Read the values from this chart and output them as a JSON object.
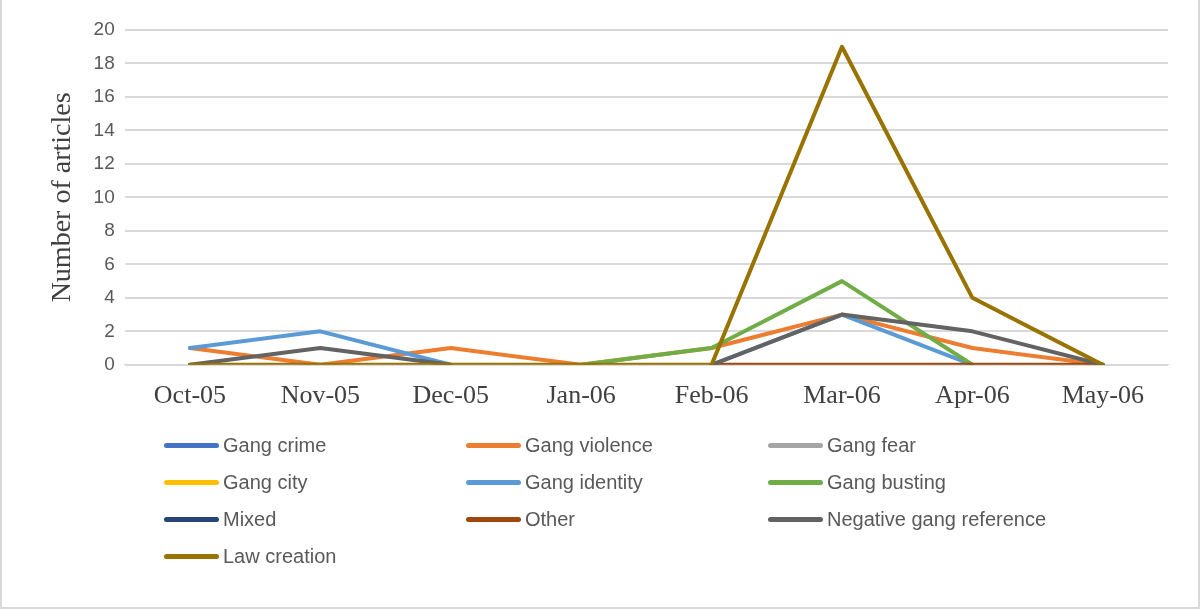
{
  "chart_data": {
    "type": "line",
    "ylabel": "Number of articles",
    "categories": [
      "Oct-05",
      "Nov-05",
      "Dec-05",
      "Jan-06",
      "Feb-06",
      "Mar-06",
      "Apr-06",
      "May-06"
    ],
    "ylim": [
      0,
      20
    ],
    "yticks": [
      0,
      2,
      4,
      6,
      8,
      10,
      12,
      14,
      16,
      18,
      20
    ],
    "grid": "y",
    "legend": "bottom",
    "marker": "none",
    "series": [
      {
        "name": "Gang crime",
        "color": "#4472c4",
        "values": [
          null,
          null,
          null,
          null,
          null,
          null,
          null,
          null
        ]
      },
      {
        "name": "Gang violence",
        "color": "#ed7d31",
        "values": [
          1,
          0,
          1,
          0,
          1,
          3,
          1,
          0
        ]
      },
      {
        "name": "Gang fear",
        "color": "#a5a5a5",
        "values": [
          null,
          null,
          null,
          null,
          null,
          null,
          null,
          null
        ]
      },
      {
        "name": "Gang city",
        "color": "#ffc000",
        "values": [
          null,
          null,
          null,
          null,
          null,
          null,
          null,
          null
        ]
      },
      {
        "name": "Gang identity",
        "color": "#5b9bd5",
        "values": [
          1,
          2,
          0,
          null,
          0,
          3,
          0,
          null
        ]
      },
      {
        "name": "Gang busting",
        "color": "#70ad47",
        "values": [
          null,
          null,
          null,
          0,
          1,
          5,
          0,
          null
        ]
      },
      {
        "name": "Mixed",
        "color": "#264478",
        "values": [
          null,
          null,
          null,
          null,
          null,
          null,
          null,
          null
        ]
      },
      {
        "name": "Other",
        "color": "#9e480e",
        "values": [
          null,
          null,
          null,
          null,
          0,
          0,
          0,
          0
        ]
      },
      {
        "name": "Negative gang reference",
        "color": "#636363",
        "values": [
          0,
          1,
          0,
          null,
          0,
          3,
          2,
          0
        ]
      },
      {
        "name": "Law creation",
        "color": "#997300",
        "values": [
          0,
          0,
          0,
          0,
          0,
          19,
          4,
          0
        ]
      }
    ]
  }
}
